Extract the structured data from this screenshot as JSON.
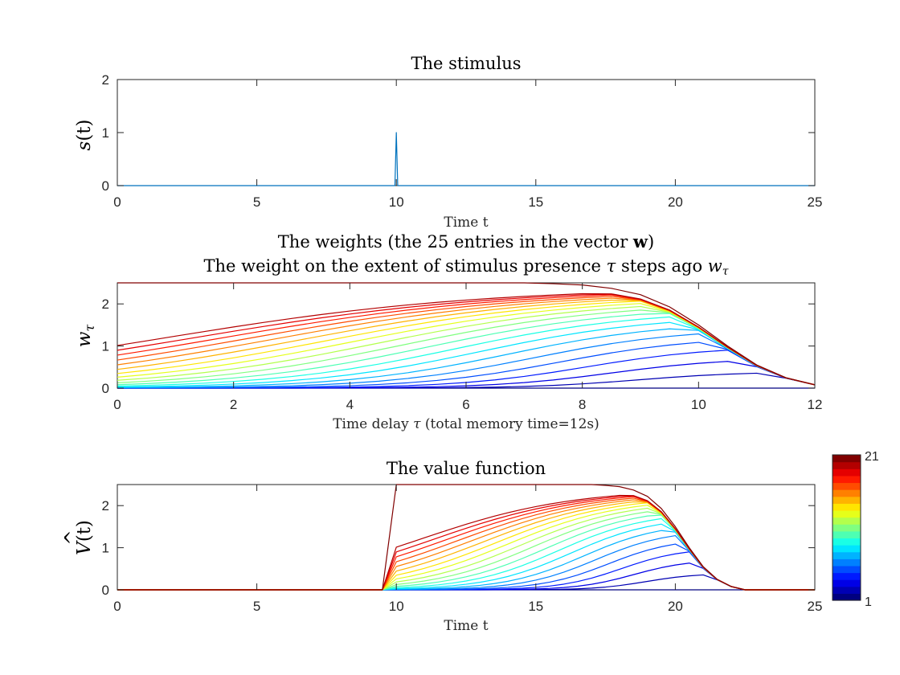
{
  "chart_data": [
    {
      "type": "line",
      "title": "The stimulus",
      "xlabel": "Time t",
      "ylabel": "s(t)",
      "xlim": [
        0,
        25
      ],
      "ylim": [
        0,
        2
      ],
      "xticks": [
        0,
        5,
        10,
        15,
        20,
        25
      ],
      "yticks": [
        0,
        1,
        2
      ],
      "series": [
        {
          "color": "#0072BD",
          "x": [
            0,
            9.95,
            10,
            10.05,
            25
          ],
          "y": [
            0,
            0,
            1,
            0,
            0
          ]
        }
      ]
    },
    {
      "type": "line",
      "title_lines": [
        "The weights (the 25 entries in the vector w)",
        "The weight on the extent of stimulus presence τ steps ago w_τ"
      ],
      "xlabel": "Time delay τ (total memory time=12s)",
      "ylabel": "w_τ",
      "xlim": [
        0,
        12
      ],
      "ylim": [
        0,
        2.5
      ],
      "xticks": [
        0,
        2,
        4,
        6,
        8,
        10,
        12
      ],
      "yticks": [
        0,
        1,
        2
      ],
      "n_series": 21,
      "colormap": "jet",
      "final_curve_x": [
        0,
        0.5,
        1,
        1.5,
        2,
        2.5,
        3,
        3.5,
        4,
        4.5,
        5,
        5.5,
        6,
        6.5,
        7,
        7.5,
        8,
        8.5,
        9,
        9.5,
        10,
        10.5,
        11,
        11.5,
        12
      ],
      "final_curve_y": [
        2.5,
        2.5,
        2.5,
        2.5,
        2.5,
        2.5,
        2.5,
        2.5,
        2.5,
        2.5,
        2.5,
        2.5,
        2.5,
        2.5,
        2.5,
        2.48,
        2.45,
        2.37,
        2.22,
        1.93,
        1.5,
        1.0,
        0.55,
        0.25,
        0.08
      ],
      "description_of_family": "series k rises later and lower for small k; series 1 is near zero"
    },
    {
      "type": "line",
      "title": "The value function",
      "xlabel": "Time t",
      "ylabel": "V̂(t)",
      "xlim": [
        0,
        25
      ],
      "ylim": [
        0,
        2.5
      ],
      "xticks": [
        0,
        5,
        10,
        15,
        20,
        25
      ],
      "yticks": [
        0,
        1,
        2
      ],
      "n_series": 21,
      "colormap": "jet",
      "colorbar": {
        "min_label": "1",
        "max_label": "21"
      }
    }
  ],
  "axes_text": {
    "p1_title": "The stimulus",
    "p1_xlabel": "Time t",
    "p1_ylabel_main": "s",
    "p1_ylabel_rest": "(t)",
    "p2_title1_a": "The weights (the 25 entries in the vector ",
    "p2_title1_bold": "w",
    "p2_title1_c": ")",
    "p2_title2_a": "The weight on the extent of stimulus presence ",
    "p2_title2_tau": "τ",
    "p2_title2_b": " steps ago ",
    "p2_title2_w": "w",
    "p2_title2_sub": "τ",
    "p2_xlabel_a": "Time delay ",
    "p2_xlabel_tau": "τ",
    "p2_xlabel_b": " (total memory time=12s)",
    "p2_ylabel_main": "w",
    "p2_ylabel_sub": "τ",
    "p3_title": "The value function",
    "p3_xlabel": "Time t",
    "p3_ylabel_main": "V",
    "p3_ylabel_hat": "^",
    "p3_ylabel_rest": "(t)",
    "cb_max": "21",
    "cb_min": "1"
  }
}
